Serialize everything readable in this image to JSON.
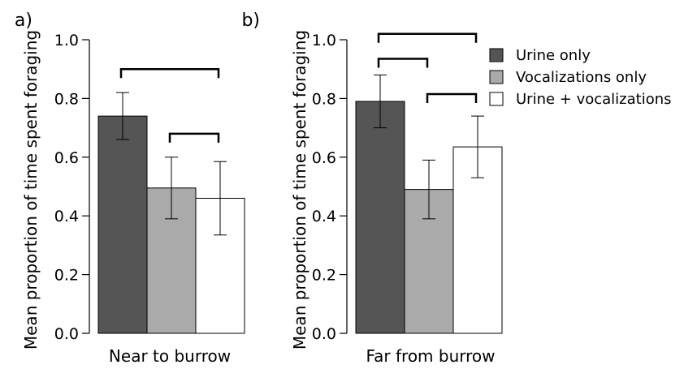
{
  "colors": {
    "urine_only": "#555555",
    "vocalizations_only": "#aaaaaa",
    "urine_vocalizations": "#ffffff",
    "stroke": "#000000"
  },
  "legend_items": [
    "Urine only",
    "Vocalizations only",
    "Urine + vocalizations"
  ],
  "chart_data": [
    {
      "type": "bar",
      "panel_label": "a)",
      "ylabel": "Mean proportion of time spent foraging",
      "xlabel": "Near to burrow",
      "ylim": [
        0.0,
        1.0
      ],
      "yticks": [
        "0.0",
        "0.2",
        "0.4",
        "0.6",
        "0.8",
        "1.0"
      ],
      "grid": false,
      "series": [
        {
          "name": "Urine only",
          "value": 0.74,
          "err_low": 0.66,
          "err_high": 0.82
        },
        {
          "name": "Vocalizations only",
          "value": 0.495,
          "err_low": 0.39,
          "err_high": 0.6
        },
        {
          "name": "Urine + vocalizations",
          "value": 0.46,
          "err_low": 0.335,
          "err_high": 0.585
        }
      ],
      "significance_brackets": [
        {
          "from": 0,
          "to": 2,
          "level": 0.9
        },
        {
          "from": 1,
          "to": 2,
          "level": 0.68
        }
      ]
    },
    {
      "type": "bar",
      "panel_label": "b)",
      "ylabel": "Mean proportion of time spent foraging",
      "xlabel": "Far from burrow",
      "ylim": [
        0.0,
        1.0
      ],
      "yticks": [
        "0.0",
        "0.2",
        "0.4",
        "0.6",
        "0.8",
        "1.0"
      ],
      "grid": false,
      "legend": "top-right",
      "series": [
        {
          "name": "Urine only",
          "value": 0.79,
          "err_low": 0.7,
          "err_high": 0.88
        },
        {
          "name": "Vocalizations only",
          "value": 0.49,
          "err_low": 0.39,
          "err_high": 0.59
        },
        {
          "name": "Urine + vocalizations",
          "value": 0.635,
          "err_low": 0.53,
          "err_high": 0.74
        }
      ],
      "significance_brackets": [
        {
          "from": 0,
          "to": 2,
          "level": 1.02
        },
        {
          "from": 0,
          "to": 1,
          "level": 0.935
        },
        {
          "from": 1,
          "to": 2,
          "level": 0.815
        }
      ]
    }
  ]
}
